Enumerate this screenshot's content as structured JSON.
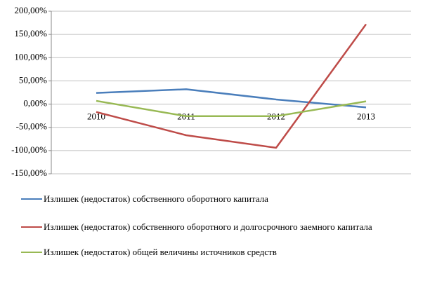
{
  "chart_data": {
    "type": "line",
    "categories": [
      "2010",
      "2011",
      "2012",
      "2013"
    ],
    "series": [
      {
        "name": "Излишек (недостаток) собственного оборотного капитала",
        "color": "#4a7ebb",
        "values": [
          24,
          32,
          10,
          -7
        ]
      },
      {
        "name": "Излишек (недостаток) собственного оборотного и долгосрочного заемного капитала",
        "color": "#be4b48",
        "values": [
          -17,
          -67,
          -94,
          172
        ]
      },
      {
        "name": "Излишек (недостаток) общей величины источников средств",
        "color": "#98b954",
        "values": [
          7,
          -26,
          -26,
          6
        ]
      }
    ],
    "ylim": [
      -150,
      200
    ],
    "yticks": [
      {
        "value": -150,
        "label": "-150,00%"
      },
      {
        "value": -100,
        "label": "-100,00%"
      },
      {
        "value": -50,
        "label": "-50,00%"
      },
      {
        "value": 0,
        "label": "0,00%"
      },
      {
        "value": 50,
        "label": "50,00%"
      },
      {
        "value": 100,
        "label": "100,00%"
      },
      {
        "value": 150,
        "label": "150,00%"
      },
      {
        "value": 200,
        "label": "200,00%"
      }
    ],
    "grid": true
  }
}
